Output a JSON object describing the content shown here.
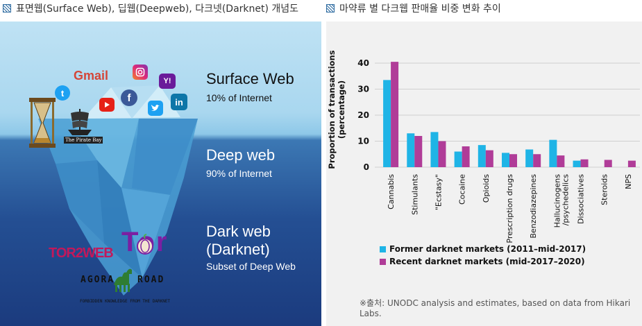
{
  "captions": {
    "left": "표면웹(Surface Web), 딥웹(Deepweb), 다크넷(Darknet) 개념도",
    "right": "마약류 별 다크웹 판매율 비중 변화 추이"
  },
  "infographic": {
    "surface": {
      "title": "Surface Web",
      "sub": "10% of Internet"
    },
    "deep": {
      "title": "Deep web",
      "sub": "90% of Internet"
    },
    "dark": {
      "title_line1": "Dark web",
      "title_line2": "(Darknet)",
      "sub": "Subset of Deep Web"
    },
    "logos": {
      "gmail": "Gmail",
      "instagram": "instagram-icon",
      "yahoo": "Y!",
      "twitter": "t",
      "facebook": "f",
      "youtube": "youtube-icon",
      "linkedin": "in",
      "pirate_bay": "The Pirate Bay",
      "tor2web": "TOR2WEB",
      "tor": "Tor",
      "agora_left": "AGORA",
      "agora_right": "ROAD",
      "agora_tagline": "FORBIDDEN KNOWLEDGE FROM THE DARKNET"
    }
  },
  "chart_data": {
    "type": "bar",
    "ylabel": "Proportion of transactions (percentage)",
    "ylim": [
      0,
      40
    ],
    "yticks": [
      0,
      10,
      20,
      30,
      40
    ],
    "grid": true,
    "categories": [
      "Cannabis",
      "Stimulants",
      "\"Ecstasy\"",
      "Cocaine",
      "Opioids",
      "Prescription drugs",
      "Benzodiazepines",
      "Hallucinogens /psychedelics",
      "Dissociatives",
      "Steroids",
      "NPS"
    ],
    "category_lines": [
      [
        "Cannabis"
      ],
      [
        "Stimulants"
      ],
      [
        "\"Ecstasy\""
      ],
      [
        "Cocaine"
      ],
      [
        "Opioids"
      ],
      [
        "Prescription drugs"
      ],
      [
        "Benzodiazepines"
      ],
      [
        "Hallucinogens",
        "/psychedelics"
      ],
      [
        "Dissociatives"
      ],
      [
        "Steroids"
      ],
      [
        "NPS"
      ]
    ],
    "series": [
      {
        "name": "Former darknet markets (2011–mid-2017)",
        "color": "#1fb4e6",
        "values": [
          33.5,
          13,
          13.5,
          6,
          8.5,
          5.5,
          6.8,
          10.5,
          2.5,
          0,
          0
        ]
      },
      {
        "name": "Recent darknet markets (mid-2017–2020)",
        "color": "#b03c98",
        "values": [
          40.5,
          12,
          10,
          8,
          6.5,
          5,
          5,
          4.5,
          3,
          2.8,
          2.5
        ]
      }
    ],
    "legend_position": "bottom-left"
  },
  "source": "※출처: UNODC analysis and estimates, based on data from Hikari Labs."
}
